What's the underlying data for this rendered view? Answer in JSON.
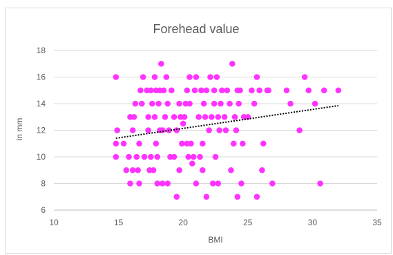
{
  "chart_data": {
    "type": "scatter",
    "title": "Forehead value",
    "xlabel": "BMI",
    "ylabel": "in mm",
    "xlim": [
      10,
      35
    ],
    "ylim": [
      6,
      18
    ],
    "x_ticks": [
      "10",
      "15",
      "20",
      "25",
      "30",
      "35"
    ],
    "y_ticks": [
      "6",
      "8",
      "10",
      "12",
      "14",
      "16",
      "18"
    ],
    "grid": "horizontal",
    "marker_color": "#ff33ff",
    "trendline": {
      "type": "linear",
      "style": "dotted",
      "color": "#000000",
      "x": [
        14.8,
        32.0
      ],
      "y": [
        11.4,
        13.85
      ]
    },
    "series": [
      {
        "points": [
          [
            14.8,
            16
          ],
          [
            14.9,
            12
          ],
          [
            14.8,
            11
          ],
          [
            14.8,
            10
          ],
          [
            15.4,
            11
          ],
          [
            15.6,
            9
          ],
          [
            15.9,
            13
          ],
          [
            15.8,
            10
          ],
          [
            15.9,
            8
          ],
          [
            16.1,
            12
          ],
          [
            16.2,
            13
          ],
          [
            16.3,
            14
          ],
          [
            16.1,
            9
          ],
          [
            16.4,
            10
          ],
          [
            16.5,
            9
          ],
          [
            16.6,
            11
          ],
          [
            16.6,
            8
          ],
          [
            16.8,
            14
          ],
          [
            16.9,
            16
          ],
          [
            16.7,
            15
          ],
          [
            17.0,
            10
          ],
          [
            17.2,
            15
          ],
          [
            17.3,
            12
          ],
          [
            17.3,
            13
          ],
          [
            17.4,
            9
          ],
          [
            17.5,
            15
          ],
          [
            17.5,
            10
          ],
          [
            17.6,
            14
          ],
          [
            17.8,
            16
          ],
          [
            17.8,
            13
          ],
          [
            17.7,
            9
          ],
          [
            17.9,
            11
          ],
          [
            17.9,
            15
          ],
          [
            18.0,
            8
          ],
          [
            18.0,
            10
          ],
          [
            18.1,
            14
          ],
          [
            18.2,
            15
          ],
          [
            18.2,
            12
          ],
          [
            18.3,
            17
          ],
          [
            18.4,
            8
          ],
          [
            18.4,
            12
          ],
          [
            18.5,
            15
          ],
          [
            18.6,
            13
          ],
          [
            18.7,
            16
          ],
          [
            18.8,
            14
          ],
          [
            18.8,
            8
          ],
          [
            18.9,
            12
          ],
          [
            19.0,
            10
          ],
          [
            19.1,
            15
          ],
          [
            19.3,
            13
          ],
          [
            19.3,
            10
          ],
          [
            19.5,
            7
          ],
          [
            19.5,
            12
          ],
          [
            19.7,
            9
          ],
          [
            19.7,
            14
          ],
          [
            19.8,
            13
          ],
          [
            19.9,
            11
          ],
          [
            20.0,
            12.5
          ],
          [
            20.1,
            13
          ],
          [
            20.2,
            14
          ],
          [
            20.3,
            11
          ],
          [
            20.3,
            15
          ],
          [
            20.4,
            10
          ],
          [
            20.5,
            16
          ],
          [
            20.5,
            14
          ],
          [
            20.6,
            11
          ],
          [
            20.7,
            9.5
          ],
          [
            20.8,
            10
          ],
          [
            20.9,
            15
          ],
          [
            21.0,
            8
          ],
          [
            21.0,
            16
          ],
          [
            21.2,
            13
          ],
          [
            21.3,
            10
          ],
          [
            21.4,
            15
          ],
          [
            21.5,
            9
          ],
          [
            21.5,
            11
          ],
          [
            21.6,
            14
          ],
          [
            21.7,
            13
          ],
          [
            21.8,
            7
          ],
          [
            21.8,
            15
          ],
          [
            22.0,
            12
          ],
          [
            22.1,
            16
          ],
          [
            22.2,
            13
          ],
          [
            22.3,
            8
          ],
          [
            22.4,
            14
          ],
          [
            22.4,
            15
          ],
          [
            22.5,
            10
          ],
          [
            22.6,
            16
          ],
          [
            22.7,
            8
          ],
          [
            22.7,
            13
          ],
          [
            22.8,
            12
          ],
          [
            22.9,
            14
          ],
          [
            23.0,
            15
          ],
          [
            23.2,
            13
          ],
          [
            23.3,
            12
          ],
          [
            23.4,
            15
          ],
          [
            23.6,
            14
          ],
          [
            23.7,
            9
          ],
          [
            23.8,
            17
          ],
          [
            23.9,
            11
          ],
          [
            24.0,
            13
          ],
          [
            24.1,
            12
          ],
          [
            24.2,
            7
          ],
          [
            24.2,
            15
          ],
          [
            24.3,
            14
          ],
          [
            24.4,
            15
          ],
          [
            24.5,
            8
          ],
          [
            24.6,
            11
          ],
          [
            24.7,
            13
          ],
          [
            25.0,
            13
          ],
          [
            25.3,
            15
          ],
          [
            25.5,
            14
          ],
          [
            25.7,
            16
          ],
          [
            25.7,
            7
          ],
          [
            25.9,
            15
          ],
          [
            26.1,
            9
          ],
          [
            26.2,
            11
          ],
          [
            26.5,
            15
          ],
          [
            26.6,
            15
          ],
          [
            26.9,
            8
          ],
          [
            28.0,
            15
          ],
          [
            28.3,
            14
          ],
          [
            29.0,
            12
          ],
          [
            29.4,
            16
          ],
          [
            29.7,
            15
          ],
          [
            30.2,
            14
          ],
          [
            30.6,
            8
          ],
          [
            30.9,
            15
          ],
          [
            32.0,
            15
          ]
        ]
      }
    ]
  }
}
